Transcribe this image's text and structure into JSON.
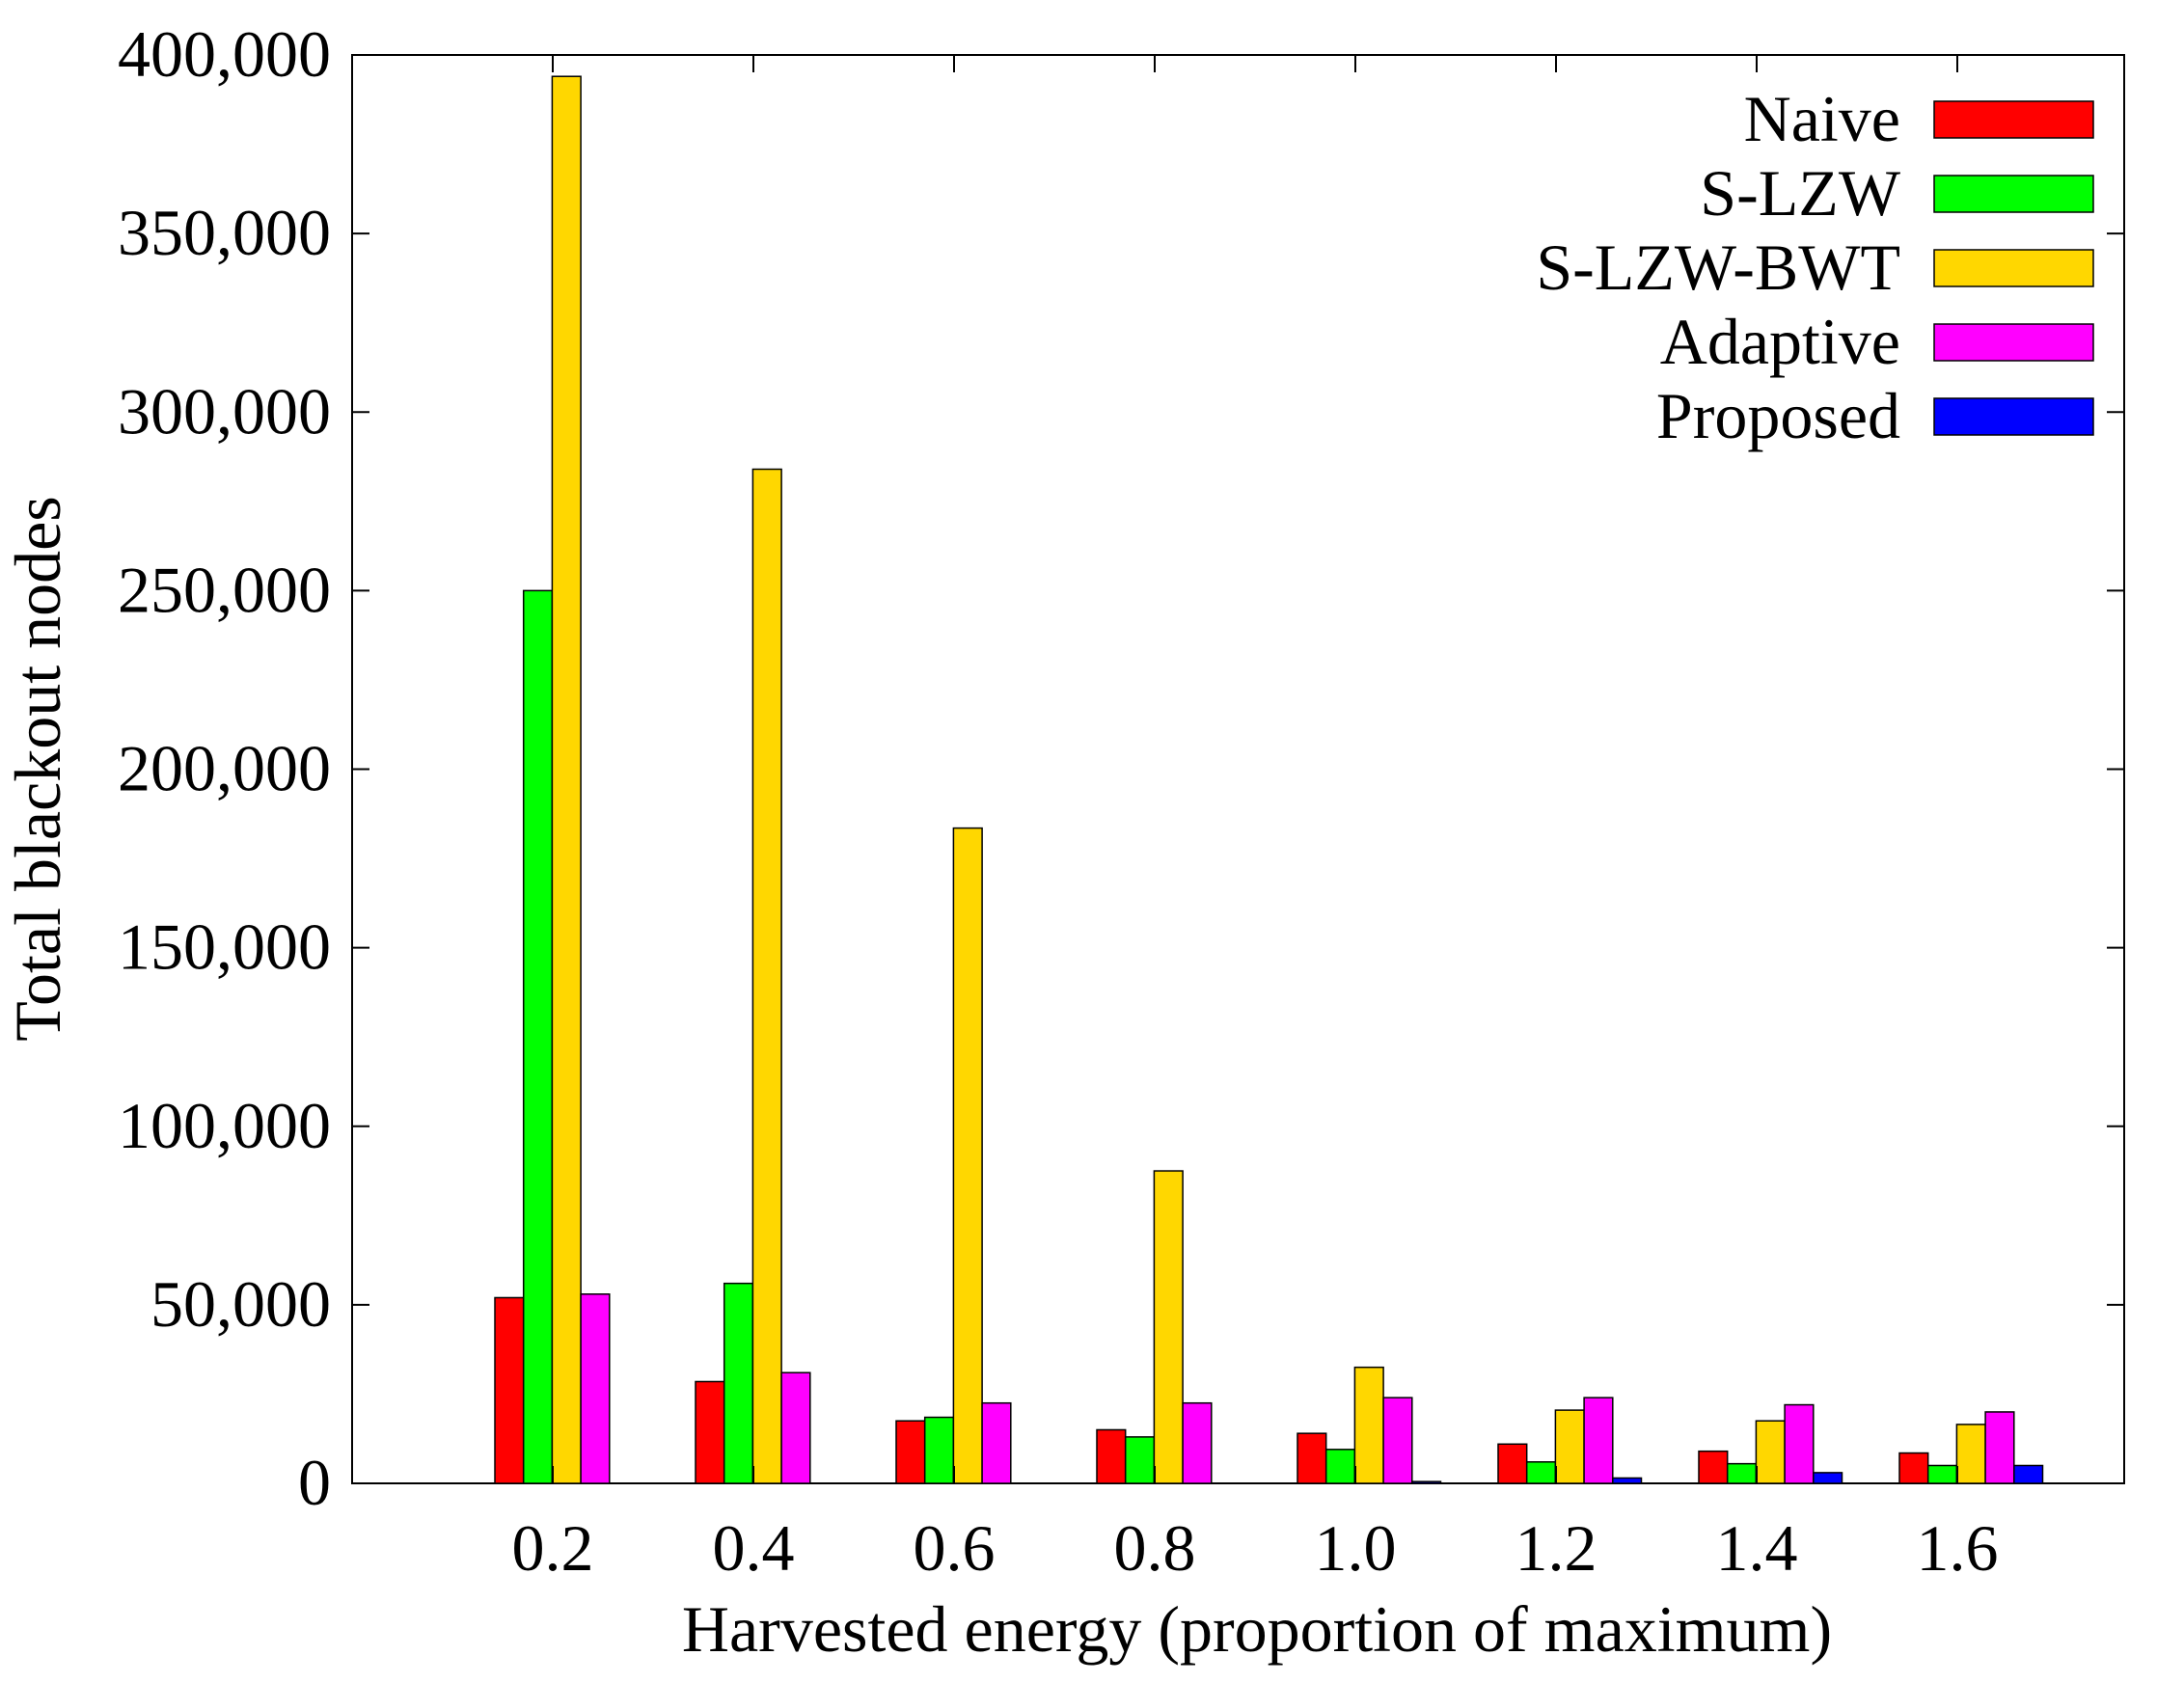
{
  "chart_data": {
    "type": "bar",
    "xlabel": "Harvested energy (proportion of maximum)",
    "ylabel": "Total blackout nodes",
    "categories": [
      "0.2",
      "0.4",
      "0.6",
      "0.8",
      "1.0",
      "1.2",
      "1.4",
      "1.6"
    ],
    "ylim": [
      0,
      400000
    ],
    "yticks": [
      0,
      50000,
      100000,
      150000,
      200000,
      250000,
      300000,
      350000,
      400000
    ],
    "ytick_labels": [
      "0",
      "50,000",
      "100,000",
      "150,000",
      "200,000",
      "250,000",
      "300,000",
      "350,000",
      "400,000"
    ],
    "grid": false,
    "legend_position": "top-right",
    "series": [
      {
        "name": "Naive",
        "color": "#ff0000",
        "values": [
          52000,
          28500,
          17500,
          15000,
          14000,
          11000,
          9000,
          8500
        ]
      },
      {
        "name": "S-LZW",
        "color": "#00ff00",
        "values": [
          250000,
          56000,
          18500,
          13000,
          9500,
          6000,
          5500,
          5000
        ]
      },
      {
        "name": "S-LZW-BWT",
        "color": "#ffd700",
        "values": [
          394000,
          284000,
          183500,
          87500,
          32500,
          20500,
          17500,
          16500
        ]
      },
      {
        "name": "Adaptive",
        "color": "#ff00ff",
        "values": [
          53000,
          31000,
          22500,
          22500,
          24000,
          24000,
          22000,
          20000
        ]
      },
      {
        "name": "Proposed",
        "color": "#0000ff",
        "values": [
          0,
          0,
          0,
          0,
          500,
          1500,
          3000,
          5000
        ]
      }
    ]
  }
}
